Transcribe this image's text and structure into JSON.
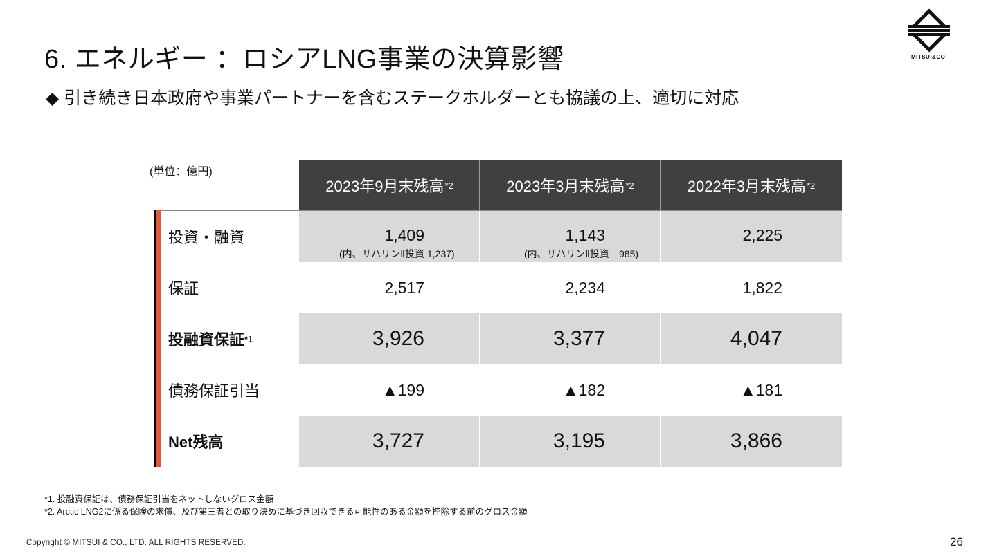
{
  "title": "6. エネルギー ：ロシアLNG事業の決算影響",
  "subtitle": "◆ 引き続き日本政府や事業パートナーを含むステークホルダーとも協議の上、適切に対応",
  "logo": {
    "icon": "mitsui-logo-icon",
    "text": "MITSUI&CO."
  },
  "table": {
    "unit": "(単位：億円)",
    "headers": [
      {
        "label": "2023年9月末残高",
        "sup": "*2"
      },
      {
        "label": "2023年3月末残高",
        "sup": "*2"
      },
      {
        "label": "2022年3月末残高",
        "sup": "*2"
      }
    ],
    "rows": [
      {
        "label": "投資・融資",
        "sup": "",
        "values": [
          "1,409",
          "1,143",
          "2,225"
        ],
        "notes": [
          "(内、サハリンⅡ投資 1,237)",
          "(内、サハリンⅡ投資　985)",
          ""
        ]
      },
      {
        "label": "保証",
        "sup": "",
        "values": [
          "2,517",
          "2,234",
          "1,822"
        ]
      },
      {
        "label": "投融資保証",
        "sup": "*1",
        "values": [
          "3,926",
          "3,377",
          "4,047"
        ]
      },
      {
        "label": "債務保証引当",
        "sup": "",
        "values": [
          "▲199",
          "▲182",
          "▲181"
        ]
      },
      {
        "label": "Net残高",
        "sup": "",
        "values": [
          "3,727",
          "3,195",
          "3,866"
        ]
      }
    ]
  },
  "footnotes": [
    "*1. 投融資保証は、債務保証引当をネットしないグロス金額",
    "*2. Arctic LNG2に係る保険の求償、及び第三者との取り決めに基づき回収できる可能性のある金額を控除する前のグロス金額"
  ],
  "copyright": "Copyright © MITSUI & CO., LTD. ALL RIGHTS RESERVED.",
  "page_number": "26"
}
